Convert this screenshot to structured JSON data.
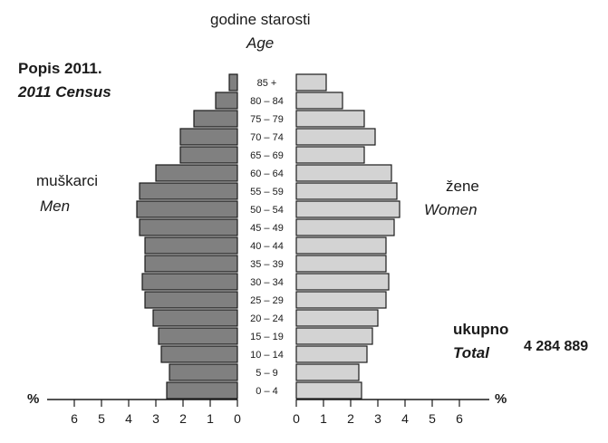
{
  "titles": {
    "age_local": "godine starosti",
    "age_en": "Age",
    "census_local": "Popis 2011.",
    "census_en": "2011 Census",
    "men_local": "muškarci",
    "men_en": "Men",
    "women_local": "žene",
    "women_en": "Women",
    "total_local": "ukupno",
    "total_en": "Total",
    "total_value": "4 284 889",
    "unit_left": "%",
    "unit_right": "%"
  },
  "colors": {
    "men": "#808080",
    "women": "#d3d3d3",
    "bar_stroke": "#1a1a1a",
    "axis": "#1a1a1a"
  },
  "chart_data": {
    "type": "bar",
    "orientation": "horizontal",
    "subtype": "population-pyramid",
    "categories": [
      "0 – 4",
      "5 – 9",
      "10 – 14",
      "15 – 19",
      "20 – 24",
      "25 – 29",
      "30 – 34",
      "35 – 39",
      "40 – 44",
      "45 – 49",
      "50 – 54",
      "55 – 59",
      "60 – 64",
      "65 – 69",
      "70 – 74",
      "75 – 79",
      "80 – 84",
      "85 +"
    ],
    "series": [
      {
        "name": "muškarci / Men",
        "values": [
          2.6,
          2.5,
          2.8,
          2.9,
          3.1,
          3.4,
          3.5,
          3.4,
          3.4,
          3.6,
          3.7,
          3.6,
          3.0,
          2.1,
          2.1,
          1.6,
          0.8,
          0.3
        ]
      },
      {
        "name": "žene / Women",
        "values": [
          2.4,
          2.3,
          2.6,
          2.8,
          3.0,
          3.3,
          3.4,
          3.3,
          3.3,
          3.6,
          3.8,
          3.7,
          3.5,
          2.5,
          2.9,
          2.5,
          1.7,
          1.1
        ]
      }
    ],
    "x_ticks": [
      "0",
      "1",
      "2",
      "3",
      "4",
      "5",
      "6"
    ],
    "xlabel": "%",
    "xlim": [
      0,
      6.5
    ],
    "grid": false
  }
}
